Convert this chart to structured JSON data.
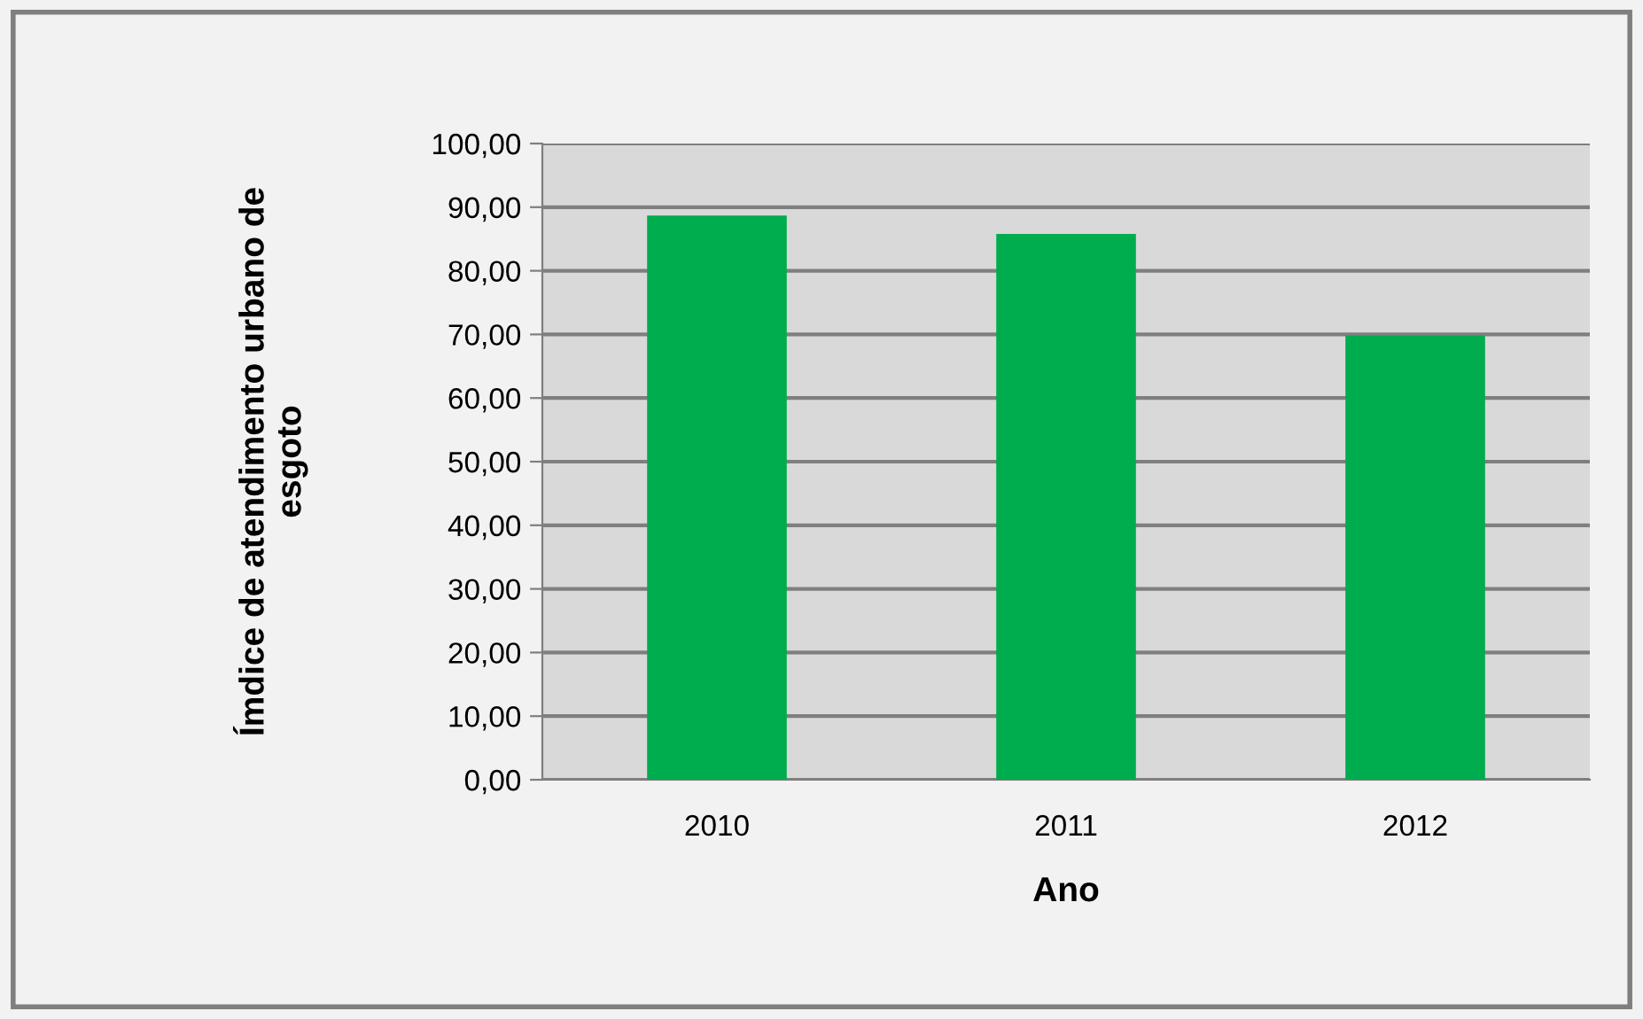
{
  "chart_data": {
    "type": "bar",
    "xlabel": "Ano",
    "ylabel": "Ímdice de atendimento urbano de\nesgoto",
    "categories": [
      "2010",
      "2011",
      "2012"
    ],
    "values": [
      88.7,
      85.8,
      69.8
    ],
    "color": "#00ad4e",
    "ylim": [
      0,
      100
    ],
    "yticks": [
      {
        "value": 0,
        "label": "0,00"
      },
      {
        "value": 10,
        "label": "10,00"
      },
      {
        "value": 20,
        "label": "20,00"
      },
      {
        "value": 30,
        "label": "30,00"
      },
      {
        "value": 40,
        "label": "40,00"
      },
      {
        "value": 50,
        "label": "50,00"
      },
      {
        "value": 60,
        "label": "60,00"
      },
      {
        "value": 70,
        "label": "70,00"
      },
      {
        "value": 80,
        "label": "80,00"
      },
      {
        "value": 90,
        "label": "90,00"
      },
      {
        "value": 100,
        "label": "100,00"
      }
    ],
    "grid": "y",
    "legend": false
  }
}
